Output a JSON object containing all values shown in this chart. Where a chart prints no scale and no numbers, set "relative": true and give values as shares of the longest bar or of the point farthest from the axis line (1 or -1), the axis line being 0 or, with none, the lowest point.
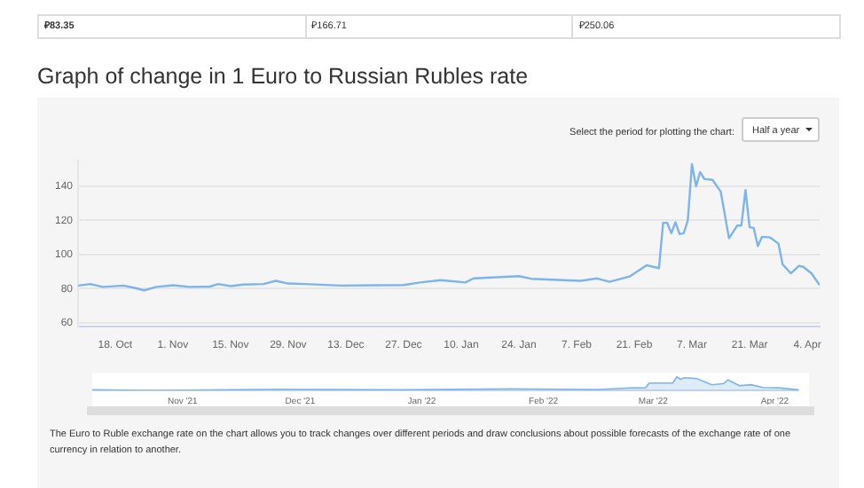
{
  "chart_data": [
    {
      "type": "other",
      "annotations": [
        "₽83.35",
        "₽166.71",
        "₽250.06"
      ]
    },
    {
      "type": "line",
      "title": "Graph of change in 1 Euro to Russian Rubles rate",
      "annotations": [
        "Select the period for plotting the chart:",
        "Half a year",
        "The Euro to Ruble exchange rate on the chart allows you to track changes over different periods and draw conclusions about possible forecasts of the exchange rate of one currency in relation to another."
      ],
      "x": [
        "2021-10-09",
        "2021-10-12",
        "2021-10-15",
        "2021-10-20",
        "2021-10-23",
        "2021-10-25",
        "2021-10-28",
        "2021-11-01",
        "2021-11-05",
        "2021-11-10",
        "2021-11-12",
        "2021-11-15",
        "2021-11-18",
        "2021-11-23",
        "2021-11-26",
        "2021-11-29",
        "2021-12-03",
        "2021-12-12",
        "2021-12-20",
        "2021-12-27",
        "2021-12-31",
        "2022-01-05",
        "2022-01-11",
        "2022-01-13",
        "2022-01-24",
        "2022-01-27",
        "2022-02-08",
        "2022-02-12",
        "2022-02-15",
        "2022-02-20",
        "2022-02-24",
        "2022-02-27",
        "2022-02-28",
        "2022-03-01",
        "2022-03-02",
        "2022-03-03",
        "2022-03-04",
        "2022-03-05",
        "2022-03-06",
        "2022-03-07",
        "2022-03-08",
        "2022-03-09",
        "2022-03-10",
        "2022-03-12",
        "2022-03-14",
        "2022-03-16",
        "2022-03-18",
        "2022-03-19",
        "2022-03-20",
        "2022-03-21",
        "2022-03-22",
        "2022-03-23",
        "2022-03-24",
        "2022-03-26",
        "2022-03-28",
        "2022-03-29",
        "2022-03-31",
        "2022-04-02",
        "2022-04-03",
        "2022-04-05",
        "2022-04-07"
      ],
      "values": [
        81.8,
        82.7,
        81,
        81.8,
        80.3,
        79,
        81,
        82,
        81,
        81.2,
        82.7,
        81.5,
        82.4,
        82.7,
        84.6,
        83,
        82.7,
        81.8,
        82,
        82.1,
        83.6,
        85,
        83.6,
        86,
        87.3,
        85.8,
        84.6,
        86,
        84,
        87.3,
        93.7,
        92,
        118.6,
        118.6,
        112.5,
        119,
        112,
        112.5,
        120,
        153,
        140,
        148.4,
        144.4,
        143.8,
        136.8,
        109.5,
        117,
        117,
        137.8,
        116,
        115.6,
        105,
        110.4,
        110,
        106.4,
        94.3,
        89,
        93.4,
        92.8,
        89,
        82.1
      ],
      "color": "#7cb5ec",
      "xlim": [
        "2021-10-09",
        "2022-04-07"
      ],
      "xticks": [
        {
          "value": "2021-10-18",
          "label": "18. Oct"
        },
        {
          "value": "2021-11-01",
          "label": "1. Nov"
        },
        {
          "value": "2021-11-15",
          "label": "15. Nov"
        },
        {
          "value": "2021-11-29",
          "label": "29. Nov"
        },
        {
          "value": "2021-12-13",
          "label": "13. Dec"
        },
        {
          "value": "2021-12-27",
          "label": "27. Dec"
        },
        {
          "value": "2022-01-10",
          "label": "10. Jan"
        },
        {
          "value": "2022-01-24",
          "label": "24. Jan"
        },
        {
          "value": "2022-02-07",
          "label": "7. Feb"
        },
        {
          "value": "2022-02-21",
          "label": "21. Feb"
        },
        {
          "value": "2022-03-07",
          "label": "7. Mar"
        },
        {
          "value": "2022-03-21",
          "label": "21. Mar"
        },
        {
          "value": "2022-04-04",
          "label": "4. Apr"
        }
      ],
      "ylim": [
        58,
        155
      ],
      "yticks": [
        60,
        80,
        100,
        120,
        140
      ],
      "grid": "y"
    },
    {
      "type": "area",
      "relative": true,
      "color": "#7cb5ec",
      "x": [
        "2021-10-09",
        "2021-10-25",
        "2021-11-26",
        "2021-12-27",
        "2022-01-24",
        "2022-02-15",
        "2022-02-24",
        "2022-02-27",
        "2022-02-28",
        "2022-03-06",
        "2022-03-07",
        "2022-03-08",
        "2022-03-09",
        "2022-03-12",
        "2022-03-16",
        "2022-03-19",
        "2022-03-20",
        "2022-03-23",
        "2022-03-26",
        "2022-03-29",
        "2022-04-02",
        "2022-04-07"
      ],
      "values": [
        0.04,
        0,
        0.08,
        0.04,
        0.11,
        0.07,
        0.2,
        0.18,
        0.54,
        0.55,
        1,
        0.82,
        0.94,
        0.88,
        0.41,
        0.51,
        0.79,
        0.35,
        0.42,
        0.21,
        0.19,
        0.04
      ],
      "xlim": [
        "2021-10-09",
        "2022-04-07"
      ],
      "xticks": [
        {
          "value": "2021-11-01",
          "label": "Nov '21"
        },
        {
          "value": "2021-12-01",
          "label": "Dec '21"
        },
        {
          "value": "2022-01-01",
          "label": "Jan '22"
        },
        {
          "value": "2022-02-01",
          "label": "Feb '22"
        },
        {
          "value": "2022-03-01",
          "label": "Mar '22"
        },
        {
          "value": "2022-04-01",
          "label": "Apr '22"
        }
      ],
      "tick_labels": "x"
    }
  ]
}
